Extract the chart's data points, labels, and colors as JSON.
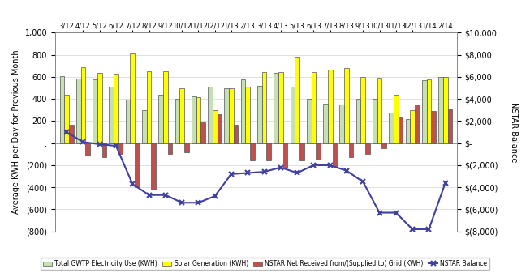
{
  "categories": [
    "3/12",
    "4/12",
    "5/12",
    "6/12",
    "7/12",
    "8/12",
    "9/12",
    "10/12",
    "11/12",
    "12/12",
    "1/13",
    "2/13",
    "3/13",
    "4/13",
    "5/13",
    "6/13",
    "7/13",
    "8/13",
    "9/13",
    "10/13",
    "11/13",
    "12/13",
    "1/14",
    "2/14"
  ],
  "electricity_use": [
    610,
    585,
    580,
    510,
    395,
    300,
    435,
    400,
    425,
    510,
    500,
    575,
    520,
    635,
    510,
    405,
    360,
    350,
    400,
    400,
    280,
    220,
    570,
    600
  ],
  "solar_gen": [
    440,
    690,
    635,
    630,
    815,
    650,
    650,
    500,
    415,
    300,
    500,
    510,
    640,
    640,
    780,
    640,
    665,
    680,
    600,
    590,
    435,
    300,
    580,
    600
  ],
  "nstar_net": [
    170,
    -110,
    -130,
    -100,
    -400,
    -420,
    -100,
    -80,
    190,
    260,
    170,
    -160,
    -160,
    -220,
    -160,
    -150,
    -210,
    -130,
    -100,
    -50,
    230,
    350,
    290,
    310
  ],
  "nstar_balance": [
    1000,
    100,
    -100,
    -250,
    -3700,
    -4700,
    -4700,
    -5400,
    -5400,
    -4800,
    -2800,
    -2700,
    -2600,
    -2200,
    -2700,
    -2000,
    -2000,
    -2500,
    -3500,
    -6300,
    -6300,
    -7800,
    -7800,
    -3600
  ],
  "color_electricity": "#c6e0b4",
  "color_solar": "#ffff00",
  "color_nstar_net": "#c0504d",
  "color_nstar_balance": "#4040a0",
  "ylabel_left": "Average KWH per Day for Previous Month",
  "ylabel_right": "NSTAR Balance",
  "ylim_left": [
    -800,
    1000
  ],
  "ylim_right": [
    -8000,
    10000
  ],
  "yticks_left": [
    -800,
    -600,
    -400,
    -200,
    0,
    200,
    400,
    600,
    800,
    1000
  ],
  "ytick_labels_left": [
    "(800)",
    "(600)",
    "(400)",
    "(200)",
    ".",
    "200",
    "400",
    "600",
    "800",
    "1,000"
  ],
  "yticks_right": [
    -8000,
    -6000,
    -4000,
    -2000,
    0,
    2000,
    4000,
    6000,
    8000,
    10000
  ],
  "ytick_labels_right": [
    "$(8,000)",
    "$(6,000)",
    "$(4,000)",
    "$(2,000)",
    "$-",
    "$2,000",
    "$4,000",
    "$6,000",
    "$8,000",
    "$10,000"
  ],
  "legend_labels": [
    "Total GWTP Electricity Use (KWH)",
    "Solar Generation (KWH)",
    "NSTAR Net Received from/(Supplied to) Grid (KWH)",
    "NSTAR Balance"
  ],
  "bar_width": 0.28
}
